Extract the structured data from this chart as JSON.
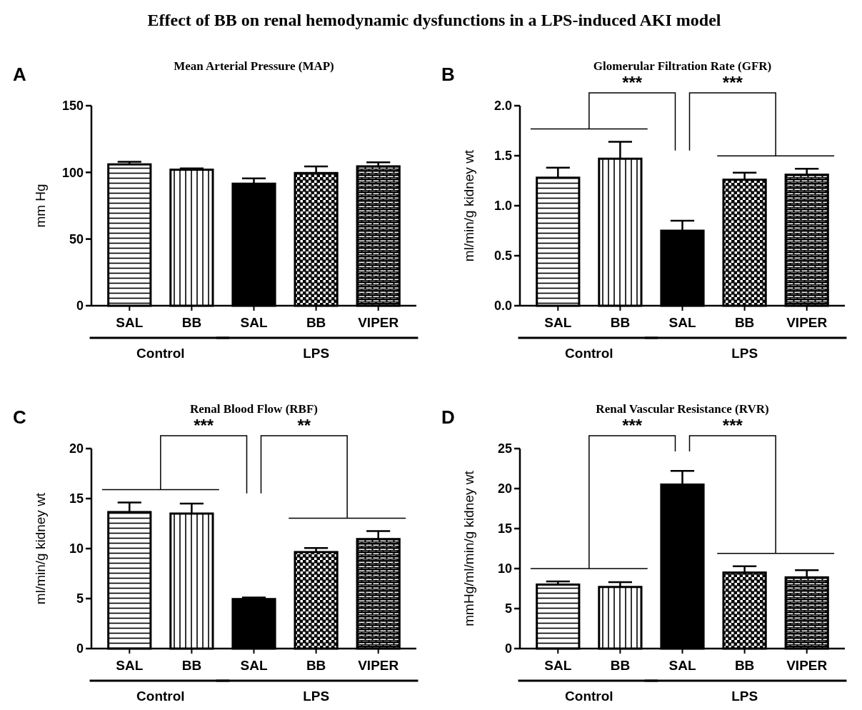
{
  "chart_data": [
    {
      "type": "bar",
      "title": "Effect of BB on renal hemodynamic dysfunctions in a LPS-induced AKI model",
      "subtitle": "Mean Arterial Pressure (MAP)",
      "ylabel": "mm Hg",
      "categories": [
        "SAL",
        "BB",
        "SAL",
        "BB",
        "VIPER"
      ],
      "values": [
        106,
        102,
        91.5,
        99.5,
        104.5
      ],
      "errors": [
        [
          106,
          108
        ],
        [
          102,
          103
        ],
        [
          91.5,
          95.5
        ],
        [
          99.5,
          104.5
        ],
        [
          104.5,
          107.5
        ]
      ],
      "colors": [
        "#000000",
        "#000000",
        "#000000",
        "#000000",
        "#000000"
      ],
      "ylim": [
        0,
        150
      ],
      "yticks": [
        0,
        50,
        100,
        150
      ],
      "annotations": [
        "A",
        "Control",
        "LPS"
      ]
    },
    {
      "type": "bar",
      "subtitle": "Glomerular Filtration Rate (GFR)",
      "ylabel": "ml/min/g kidney wt",
      "categories": [
        "SAL",
        "BB",
        "SAL",
        "BB",
        "VIPER"
      ],
      "values": [
        1.28,
        1.47,
        0.75,
        1.26,
        1.31
      ],
      "errors": [
        [
          1.28,
          1.38
        ],
        [
          1.47,
          1.64
        ],
        [
          0.75,
          0.85
        ],
        [
          1.26,
          1.33
        ],
        [
          1.31,
          1.37
        ]
      ],
      "colors": [
        "#000000",
        "#000000",
        "#000000",
        "#000000",
        "#000000"
      ],
      "ylim": [
        0,
        2
      ],
      "yticks": [
        {
          "value": 0,
          "label": "0.0"
        },
        0.5,
        {
          "value": 1,
          "label": "1.0"
        },
        1.5,
        {
          "value": 2,
          "label": "2.0"
        }
      ],
      "annotations": [
        "B",
        "Control",
        "LPS",
        "***",
        "***"
      ]
    },
    {
      "type": "bar",
      "subtitle": "Renal Blood Flow (RBF)",
      "ylabel": "ml/min/g kidney wt",
      "categories": [
        "SAL",
        "BB",
        "SAL",
        "BB",
        "VIPER"
      ],
      "values": [
        13.65,
        13.5,
        4.95,
        9.65,
        10.95
      ],
      "errors": [
        [
          13.65,
          14.6
        ],
        [
          13.5,
          14.5
        ],
        [
          4.95,
          5.1
        ],
        [
          9.65,
          10.05
        ],
        [
          10.95,
          11.75
        ]
      ],
      "colors": [
        "#000000",
        "#000000",
        "#000000",
        "#000000",
        "#000000"
      ],
      "ylim": [
        0,
        20
      ],
      "yticks": [
        0,
        5,
        10,
        15,
        20
      ],
      "annotations": [
        "C",
        "Control",
        "LPS",
        "***",
        "**"
      ]
    },
    {
      "type": "bar",
      "subtitle": "Renal Vascular Resistance (RVR)",
      "ylabel": "mmHg/ml/min/g kidney wt",
      "categories": [
        "SAL",
        "BB",
        "SAL",
        "BB",
        "VIPER"
      ],
      "values": [
        8,
        7.7,
        20.5,
        9.5,
        8.9
      ],
      "errors": [
        [
          8,
          8.4
        ],
        [
          7.7,
          8.3
        ],
        [
          20.5,
          22.2
        ],
        [
          9.5,
          10.3
        ],
        [
          8.9,
          9.8
        ]
      ],
      "colors": [
        "#000000",
        "#000000",
        "#000000",
        "#000000",
        "#000000"
      ],
      "ylim": [
        0,
        25
      ],
      "yticks": [
        0,
        5,
        10,
        15,
        20,
        25
      ],
      "annotations": [
        "D",
        "Control",
        "LPS",
        "***",
        "***"
      ]
    }
  ]
}
